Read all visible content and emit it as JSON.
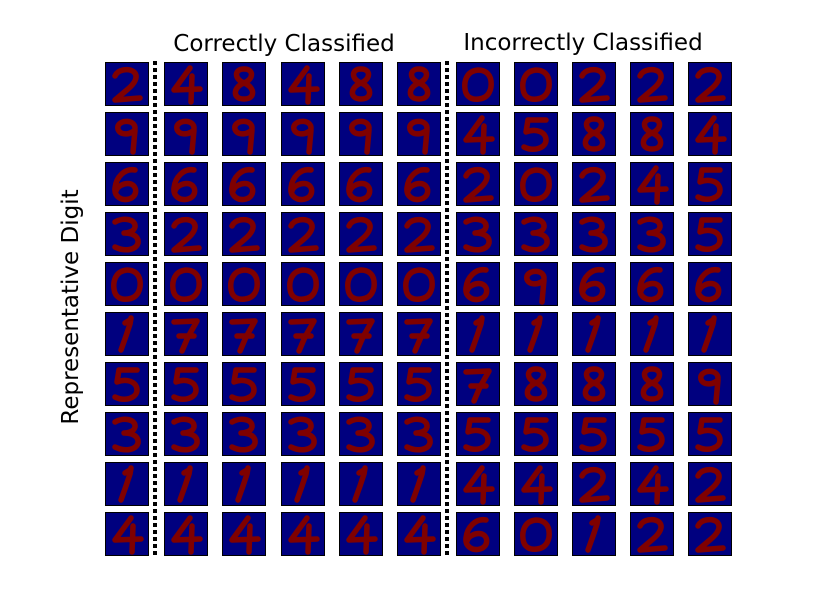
{
  "figure": {
    "heading_correct": "Correctly Classified",
    "heading_incorrect": "Incorrectly Classified",
    "ylabel": "Representative Digit",
    "colors": {
      "background": "#00007f",
      "stroke": "#7f0000",
      "frame": "#000000",
      "divider": "#000000"
    }
  },
  "rows": [
    {
      "representative": "2",
      "correct": [
        "4",
        "8",
        "4",
        "8",
        "8"
      ],
      "incorrect": [
        "0",
        "0",
        "2",
        "2",
        "2"
      ]
    },
    {
      "representative": "9",
      "correct": [
        "9",
        "9",
        "9",
        "9",
        "9"
      ],
      "incorrect": [
        "4",
        "5",
        "8",
        "8",
        "4"
      ]
    },
    {
      "representative": "6",
      "correct": [
        "6",
        "6",
        "6",
        "6",
        "6"
      ],
      "incorrect": [
        "2",
        "0",
        "2",
        "4",
        "5"
      ]
    },
    {
      "representative": "3",
      "correct": [
        "2",
        "2",
        "2",
        "2",
        "2"
      ],
      "incorrect": [
        "3",
        "3",
        "3",
        "3",
        "5"
      ]
    },
    {
      "representative": "0",
      "correct": [
        "0",
        "0",
        "0",
        "0",
        "0"
      ],
      "incorrect": [
        "6",
        "9",
        "6",
        "6",
        "6"
      ]
    },
    {
      "representative": "1",
      "correct": [
        "7",
        "7",
        "7",
        "7",
        "7"
      ],
      "incorrect": [
        "1",
        "1",
        "1",
        "1",
        "1"
      ]
    },
    {
      "representative": "5",
      "correct": [
        "5",
        "5",
        "5",
        "5",
        "5"
      ],
      "incorrect": [
        "7",
        "8",
        "8",
        "8",
        "9"
      ]
    },
    {
      "representative": "3",
      "correct": [
        "3",
        "3",
        "3",
        "3",
        "3"
      ],
      "incorrect": [
        "5",
        "5",
        "5",
        "5",
        "5"
      ]
    },
    {
      "representative": "1",
      "correct": [
        "1",
        "1",
        "1",
        "1",
        "1"
      ],
      "incorrect": [
        "4",
        "4",
        "2",
        "4",
        "2"
      ]
    },
    {
      "representative": "4",
      "correct": [
        "4",
        "4",
        "4",
        "4",
        "4"
      ],
      "incorrect": [
        "6",
        "0",
        "1",
        "2",
        "2"
      ]
    }
  ]
}
